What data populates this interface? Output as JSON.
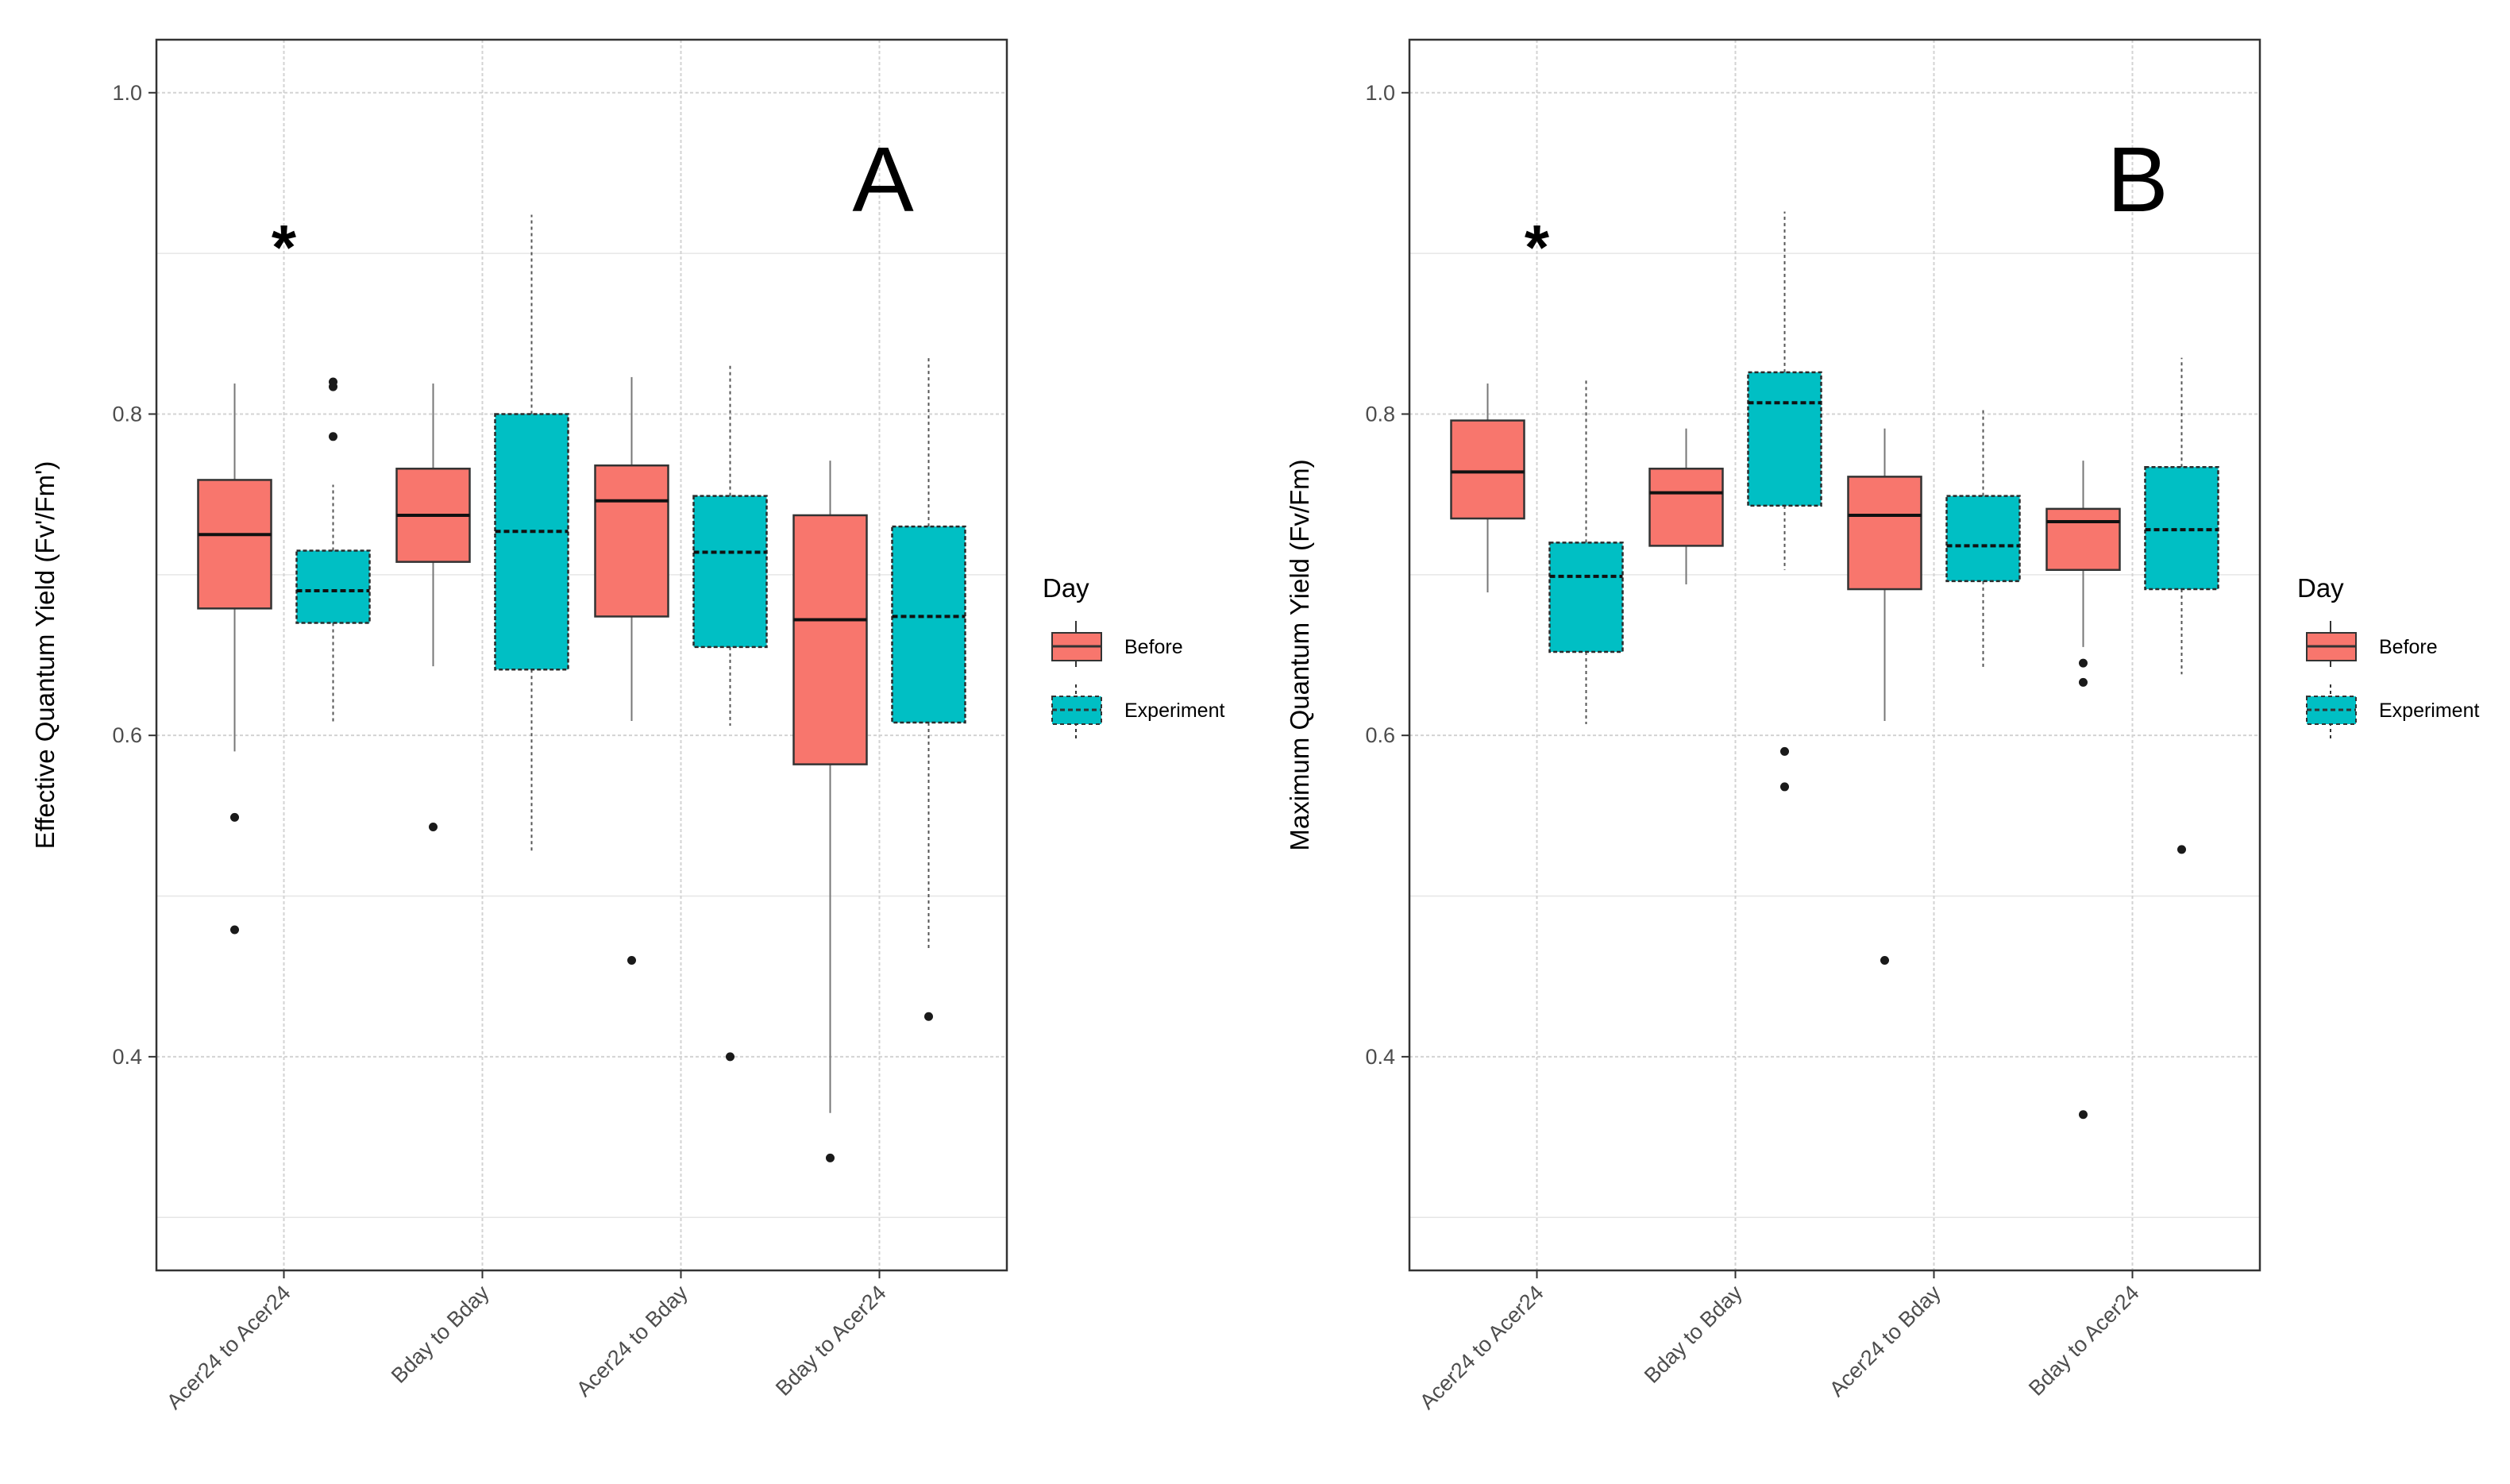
{
  "chart_data": [
    {
      "panel_label": "A",
      "type": "box",
      "ylabel": "Effective Quantum Yield (Fv'/Fm')",
      "xlabel": "",
      "ylim": [
        0.267,
        1.033
      ],
      "yticks": [
        0.4,
        0.6,
        0.8,
        1.0
      ],
      "ytick_labels": [
        "0.4",
        "0.6",
        "0.8",
        "1.0"
      ],
      "grid": true,
      "categories": [
        "Acer24 to Acer24",
        "Bday to Bday",
        "Acer24 to Bday",
        "Bday to Acer24"
      ],
      "significance_mark": {
        "category": "Acer24 to Acer24",
        "symbol": "*",
        "y": 0.905
      },
      "legend": {
        "title": "Day",
        "entries": [
          "Before",
          "Experiment"
        ],
        "position": "right"
      },
      "series": [
        {
          "name": "Before",
          "color": "#F8766D",
          "line_style": "solid",
          "boxes": [
            {
              "q1": 0.679,
              "median": 0.725,
              "q3": 0.759,
              "whisker_low": 0.59,
              "whisker_high": 0.819,
              "outliers": [
                0.549,
                0.479
              ]
            },
            {
              "q1": 0.708,
              "median": 0.737,
              "q3": 0.766,
              "whisker_low": 0.643,
              "whisker_high": 0.819,
              "outliers": [
                0.543
              ]
            },
            {
              "q1": 0.674,
              "median": 0.746,
              "q3": 0.768,
              "whisker_low": 0.609,
              "whisker_high": 0.823,
              "outliers": [
                0.46
              ]
            },
            {
              "q1": 0.582,
              "median": 0.672,
              "q3": 0.737,
              "whisker_low": 0.365,
              "whisker_high": 0.771,
              "outliers": [
                0.337
              ]
            }
          ]
        },
        {
          "name": "Experiment",
          "color": "#00BFC4",
          "line_style": "dashed",
          "boxes": [
            {
              "q1": 0.67,
              "median": 0.69,
              "q3": 0.715,
              "whisker_low": 0.608,
              "whisker_high": 0.756,
              "outliers": [
                0.82,
                0.817,
                0.786
              ]
            },
            {
              "q1": 0.641,
              "median": 0.727,
              "q3": 0.8,
              "whisker_low": 0.527,
              "whisker_high": 0.924,
              "outliers": []
            },
            {
              "q1": 0.655,
              "median": 0.714,
              "q3": 0.749,
              "whisker_low": 0.606,
              "whisker_high": 0.83,
              "outliers": [
                0.4
              ]
            },
            {
              "q1": 0.608,
              "median": 0.674,
              "q3": 0.73,
              "whisker_low": 0.467,
              "whisker_high": 0.836,
              "outliers": [
                0.425
              ]
            }
          ]
        }
      ]
    },
    {
      "panel_label": "B",
      "type": "box",
      "ylabel": "Maximum Quantum Yield (Fv/Fm)",
      "xlabel": "",
      "ylim": [
        0.267,
        1.033
      ],
      "yticks": [
        0.4,
        0.6,
        0.8,
        1.0
      ],
      "ytick_labels": [
        "0.4",
        "0.6",
        "0.8",
        "1.0"
      ],
      "grid": true,
      "categories": [
        "Acer24 to Acer24",
        "Bday to Bday",
        "Acer24 to Bday",
        "Bday to Acer24"
      ],
      "significance_mark": {
        "category": "Acer24 to Acer24",
        "symbol": "*",
        "y": 0.905
      },
      "legend": {
        "title": "Day",
        "entries": [
          "Before",
          "Experiment"
        ],
        "position": "right"
      },
      "series": [
        {
          "name": "Before",
          "color": "#F8766D",
          "line_style": "solid",
          "boxes": [
            {
              "q1": 0.735,
              "median": 0.764,
              "q3": 0.796,
              "whisker_low": 0.689,
              "whisker_high": 0.819,
              "outliers": []
            },
            {
              "q1": 0.718,
              "median": 0.751,
              "q3": 0.766,
              "whisker_low": 0.694,
              "whisker_high": 0.791,
              "outliers": []
            },
            {
              "q1": 0.691,
              "median": 0.737,
              "q3": 0.761,
              "whisker_low": 0.609,
              "whisker_high": 0.791,
              "outliers": [
                0.46
              ]
            },
            {
              "q1": 0.703,
              "median": 0.733,
              "q3": 0.741,
              "whisker_low": 0.655,
              "whisker_high": 0.771,
              "outliers": [
                0.645,
                0.633,
                0.364
              ]
            }
          ]
        },
        {
          "name": "Experiment",
          "color": "#00BFC4",
          "line_style": "dashed",
          "boxes": [
            {
              "q1": 0.652,
              "median": 0.699,
              "q3": 0.72,
              "whisker_low": 0.607,
              "whisker_high": 0.822,
              "outliers": []
            },
            {
              "q1": 0.743,
              "median": 0.807,
              "q3": 0.826,
              "whisker_low": 0.703,
              "whisker_high": 0.926,
              "outliers": [
                0.59,
                0.568
              ]
            },
            {
              "q1": 0.696,
              "median": 0.718,
              "q3": 0.749,
              "whisker_low": 0.642,
              "whisker_high": 0.803,
              "outliers": []
            },
            {
              "q1": 0.691,
              "median": 0.728,
              "q3": 0.767,
              "whisker_low": 0.638,
              "whisker_high": 0.835,
              "outliers": [
                0.529
              ]
            }
          ]
        }
      ]
    }
  ]
}
